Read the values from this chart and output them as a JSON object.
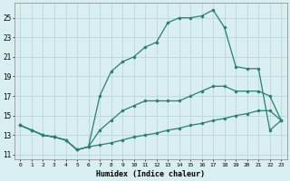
{
  "xlabel": "Humidex (Indice chaleur)",
  "background_color": "#d8eef0",
  "grid_color": "#b8d8dc",
  "line_color": "#2e7d6e",
  "xlim": [
    -0.5,
    23.5
  ],
  "ylim": [
    10.5,
    26.5
  ],
  "xticks": [
    0,
    1,
    2,
    3,
    4,
    5,
    6,
    7,
    8,
    9,
    10,
    11,
    12,
    13,
    14,
    15,
    16,
    17,
    18,
    19,
    20,
    21,
    22,
    23
  ],
  "yticks": [
    11,
    13,
    15,
    17,
    19,
    21,
    23,
    25
  ],
  "line1_x": [
    0,
    1,
    2,
    3,
    4,
    5,
    6,
    7,
    8,
    9,
    10,
    11,
    12,
    13,
    14,
    15,
    16,
    17,
    18,
    19,
    20,
    21,
    22,
    23
  ],
  "line1_y": [
    14.0,
    13.5,
    13.0,
    12.8,
    12.5,
    11.5,
    11.8,
    12.0,
    12.2,
    12.5,
    12.8,
    13.0,
    13.2,
    13.5,
    13.7,
    14.0,
    14.2,
    14.5,
    14.7,
    15.0,
    15.2,
    15.5,
    15.5,
    14.5
  ],
  "line2_x": [
    0,
    1,
    2,
    3,
    4,
    5,
    6,
    7,
    8,
    9,
    10,
    11,
    12,
    13,
    14,
    15,
    16,
    17,
    18,
    19,
    20,
    21,
    22,
    23
  ],
  "line2_y": [
    14.0,
    13.5,
    13.0,
    12.8,
    12.5,
    11.5,
    11.8,
    13.5,
    14.5,
    15.5,
    16.0,
    16.5,
    16.5,
    16.5,
    16.5,
    17.0,
    17.5,
    18.0,
    18.0,
    17.5,
    17.5,
    17.5,
    17.0,
    14.5
  ],
  "line3_x": [
    0,
    1,
    2,
    3,
    4,
    5,
    6,
    7,
    8,
    9,
    10,
    11,
    12,
    13,
    14,
    15,
    16,
    17,
    18,
    19,
    20,
    21,
    22,
    23
  ],
  "line3_y": [
    14.0,
    13.5,
    13.0,
    12.8,
    12.5,
    11.5,
    11.8,
    17.0,
    19.5,
    20.5,
    21.0,
    22.0,
    22.5,
    24.5,
    25.0,
    25.0,
    25.2,
    25.8,
    24.0,
    20.0,
    19.8,
    19.8,
    13.5,
    14.5
  ]
}
